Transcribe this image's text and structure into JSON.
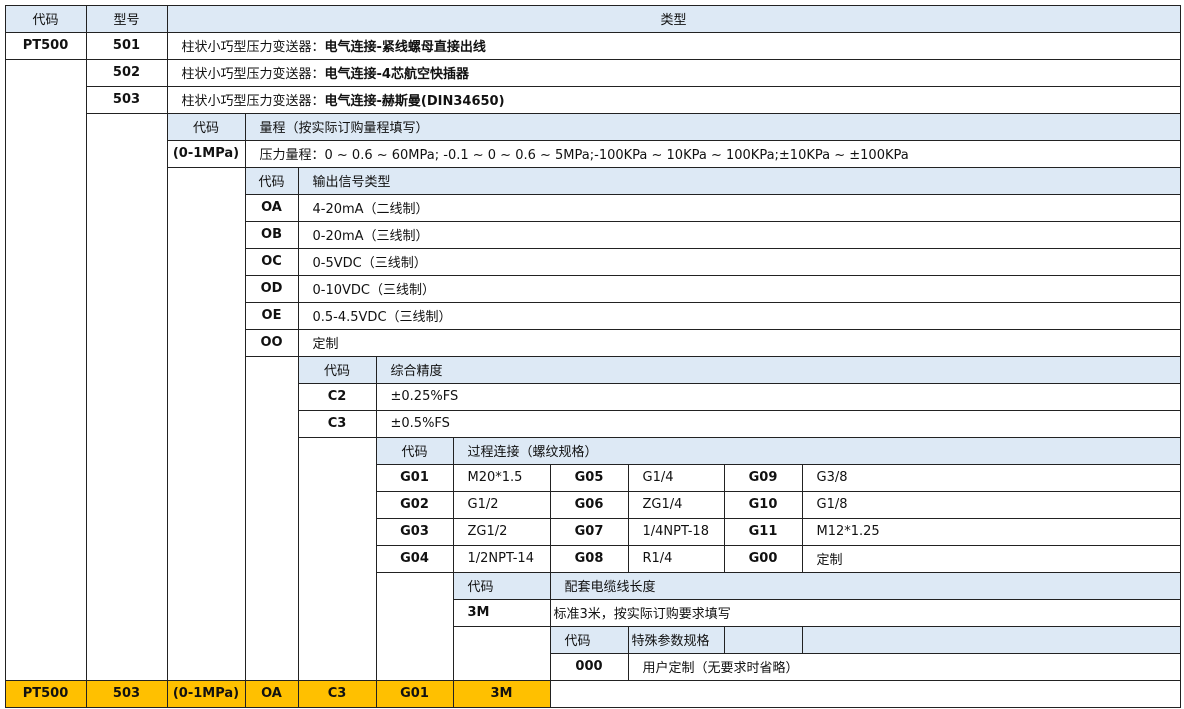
{
  "header": {
    "code": "代码",
    "model": "型号",
    "type": "类型"
  },
  "models": [
    {
      "code": "PT500",
      "model": "501",
      "prefix": "柱状小巧型压力变送器：",
      "connection": "电气连接-紧线螺母直接出线"
    },
    {
      "model": "502",
      "prefix": "柱状小巧型压力变送器：",
      "connection": "电气连接-4芯航空快插器"
    },
    {
      "model": "503",
      "prefix": "柱状小巧型压力变送器：",
      "connection": "电气连接-赫斯曼(DIN34650)"
    }
  ],
  "range": {
    "code_header": "代码",
    "title": "量程（按实际订购量程填写）",
    "code": "(0-1MPa)",
    "text": "压力量程：0 ~ 0.6 ~ 60MPa;  -0.1 ~ 0 ~ 0.6 ~ 5MPa;-100KPa ~ 10KPa ~ 100KPa;±10KPa ~ ±100KPa"
  },
  "output": {
    "code_header": "代码",
    "title": "输出信号类型",
    "items": [
      {
        "code": "OA",
        "text": "4-20mA（二线制）"
      },
      {
        "code": "OB",
        "text": "0-20mA（三线制）"
      },
      {
        "code": "OC",
        "text": "0-5VDC（三线制）"
      },
      {
        "code": "OD",
        "text": "0-10VDC（三线制）"
      },
      {
        "code": "OE",
        "text": "0.5-4.5VDC（三线制）"
      },
      {
        "code": "OO",
        "text": "定制"
      }
    ]
  },
  "accuracy": {
    "code_header": "代码",
    "title": "综合精度",
    "items": [
      {
        "code": "C2",
        "text": "±0.25%FS"
      },
      {
        "code": "C3",
        "text": "±0.5%FS"
      }
    ]
  },
  "process": {
    "code_header": "代码",
    "title": "过程连接（螺纹规格）",
    "rows": [
      [
        {
          "code": "G01",
          "text": "M20*1.5"
        },
        {
          "code": "G05",
          "text": "G1/4"
        },
        {
          "code": "G09",
          "text": "G3/8"
        }
      ],
      [
        {
          "code": "G02",
          "text": "G1/2"
        },
        {
          "code": "G06",
          "text": "ZG1/4"
        },
        {
          "code": "G10",
          "text": "G1/8"
        }
      ],
      [
        {
          "code": "G03",
          "text": "ZG1/2"
        },
        {
          "code": "G07",
          "text": "1/4NPT-18"
        },
        {
          "code": "G11",
          "text": "M12*1.25"
        }
      ],
      [
        {
          "code": "G04",
          "text": "1/2NPT-14"
        },
        {
          "code": "G08",
          "text": "R1/4"
        },
        {
          "code": "G00",
          "text": "定制"
        }
      ]
    ]
  },
  "cable": {
    "code_header": "代码",
    "title": "配套电缆线长度",
    "code": "3M",
    "text": "标准3米，按实际订购要求填写"
  },
  "special": {
    "code_header": "代码",
    "title": "特殊参数规格",
    "code": "000",
    "text": "用户定制（无要求时省略）"
  },
  "example": [
    "PT500",
    "503",
    "(0-1MPa)",
    "OA",
    "C3",
    "G01",
    "3M"
  ],
  "colors": {
    "header_bg": "#dde9f5",
    "example_bg": "#ffc000"
  }
}
